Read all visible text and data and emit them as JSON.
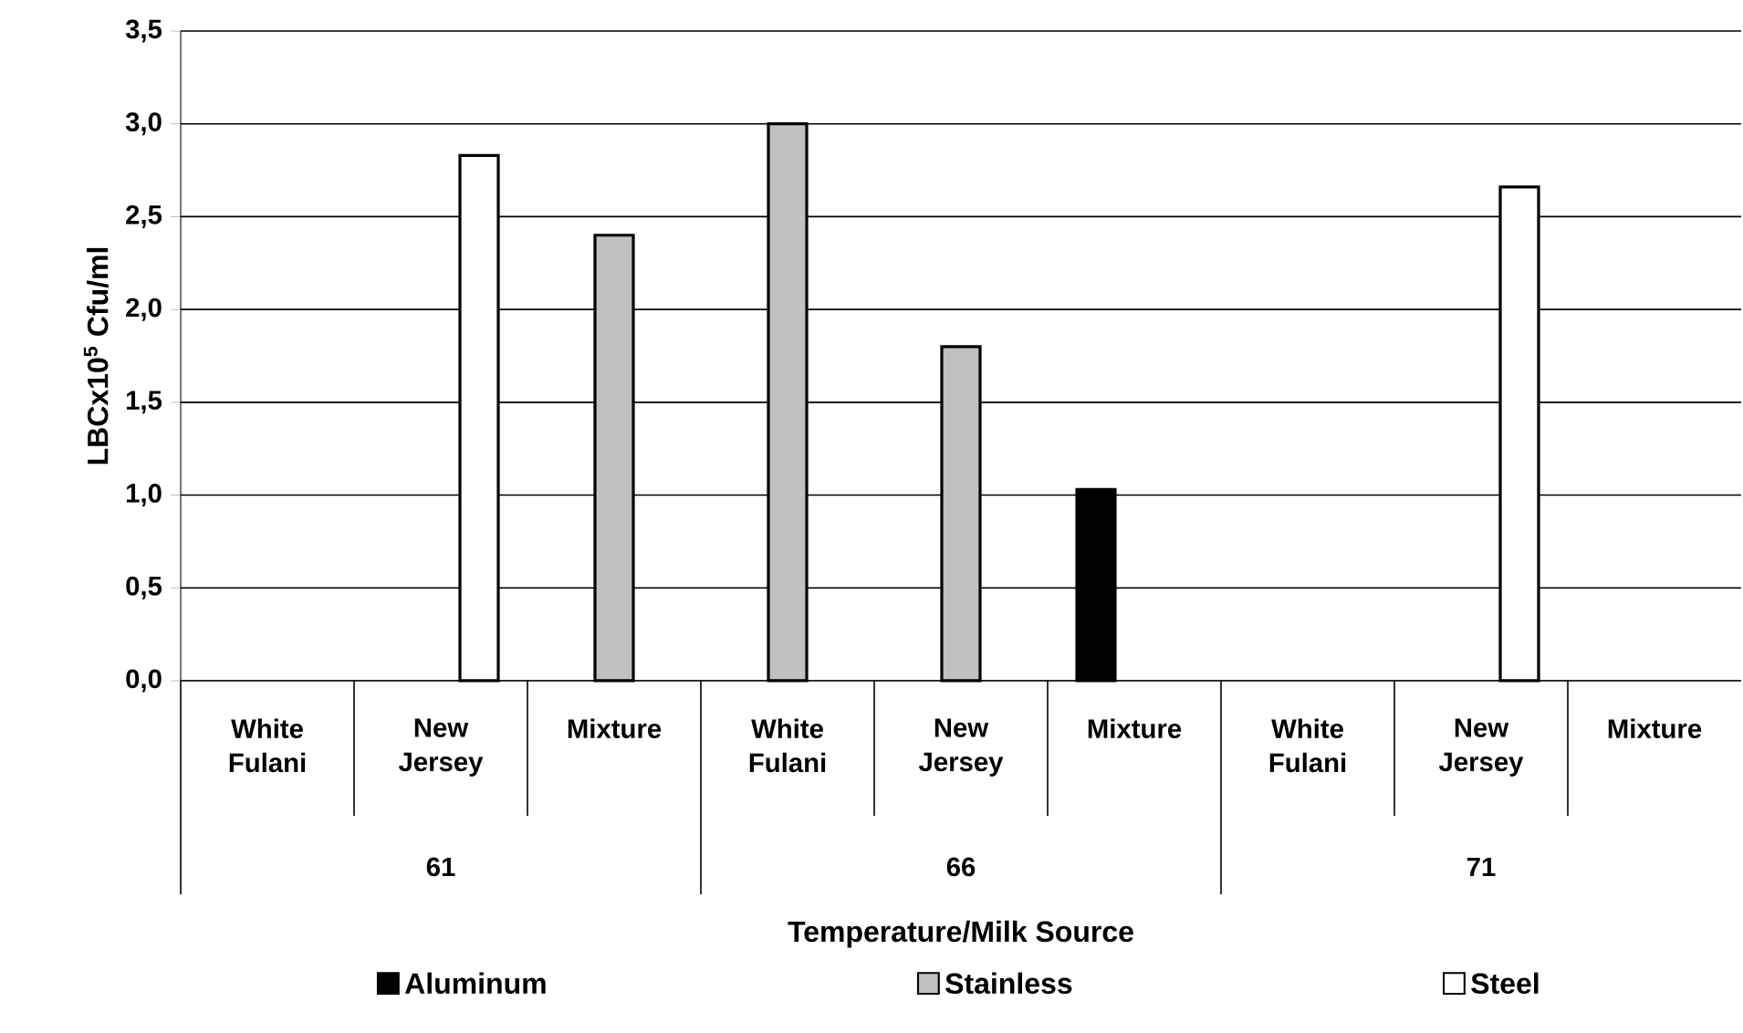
{
  "chart_data": {
    "type": "bar",
    "xlabel": "Temperature/Milk Source",
    "ylabel": "LBCx10$^{5}$ Cfu/ml",
    "categories": [
      "White Fulani",
      "New Jersey",
      "Mixture",
      "White Fulani",
      "New Jersey",
      "Mixture",
      "White Fulani",
      "New Jersey",
      "Mixture"
    ],
    "series": [
      {
        "name": "Aluminum",
        "color": "#000000",
        "values": [
          null,
          null,
          null,
          null,
          null,
          1.03,
          null,
          null,
          null
        ]
      },
      {
        "name": "Stainless",
        "color": "#c0c0c0",
        "values": [
          null,
          null,
          2.4,
          3.0,
          1.8,
          null,
          null,
          null,
          null
        ]
      },
      {
        "name": "Steel",
        "color": "#ffffff",
        "values": [
          null,
          2.83,
          null,
          null,
          null,
          null,
          null,
          2.66,
          null
        ]
      }
    ],
    "ylim": [
      0,
      3.5
    ],
    "yticks": [
      {
        "value": 0,
        "label": "0,0"
      },
      {
        "value": 0.5,
        "label": "0,5"
      },
      {
        "value": 1,
        "label": "1,0"
      },
      {
        "value": 1.5,
        "label": "1,5"
      },
      {
        "value": 2,
        "label": "2,0"
      },
      {
        "value": 2.5,
        "label": "2,5"
      },
      {
        "value": 3,
        "label": "3,0"
      },
      {
        "value": 3.5,
        "label": "3,5"
      }
    ],
    "annotations": [
      "61",
      "66",
      "71"
    ],
    "grid": "y",
    "legend": "bottom"
  }
}
